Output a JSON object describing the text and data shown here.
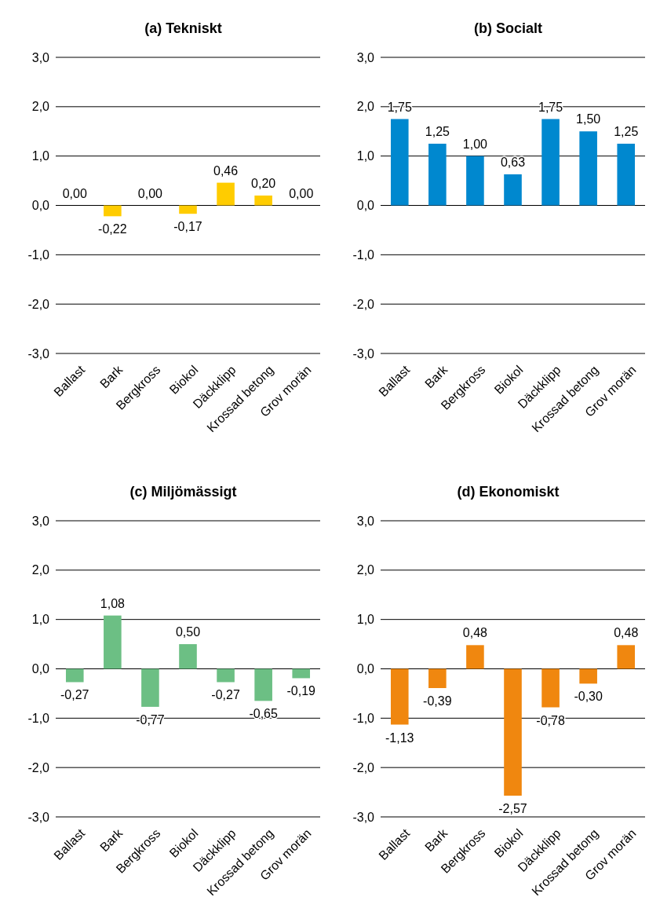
{
  "chart_data": [
    {
      "type": "bar",
      "title": "(a) Tekniskt",
      "categories": [
        "Ballast",
        "Bark",
        "Bergkross",
        "Biokol",
        "Däckklipp",
        "Krossad betong",
        "Grov morän"
      ],
      "values": [
        0,
        -0.22,
        0,
        -0.17,
        0.46,
        0.2,
        0
      ],
      "value_labels": [
        "0,00",
        "-0,22",
        "0,00",
        "-0,17",
        "0,46",
        "0,20",
        "0,00"
      ],
      "color": "#ffcc00",
      "ylim": [
        -3,
        3
      ],
      "yticks": [
        {
          "value": -3,
          "label": "-3,0"
        },
        {
          "value": -2,
          "label": "-2,0"
        },
        {
          "value": -1,
          "label": "-1,0"
        },
        {
          "value": 0,
          "label": "0,0"
        },
        {
          "value": 1,
          "label": "1,0"
        },
        {
          "value": 2,
          "label": "2,0"
        },
        {
          "value": 3,
          "label": "3,0"
        }
      ],
      "grid": "y"
    },
    {
      "type": "bar",
      "title": "(b) Socialt",
      "categories": [
        "Ballast",
        "Bark",
        "Bergkross",
        "Biokol",
        "Däckklipp",
        "Krossad betong",
        "Grov morän"
      ],
      "values": [
        1.75,
        1.25,
        1,
        0.63,
        1.75,
        1.5,
        1.25
      ],
      "value_labels": [
        "1,75",
        "1,25",
        "1,00",
        "0,63",
        "1,75",
        "1,50",
        "1,25"
      ],
      "color": "#0088cf",
      "ylim": [
        -3,
        3
      ],
      "yticks": [
        {
          "value": -3,
          "label": "-3,0"
        },
        {
          "value": -2,
          "label": "-2,0"
        },
        {
          "value": -1,
          "label": "-1,0"
        },
        {
          "value": 0,
          "label": "0,0"
        },
        {
          "value": 1,
          "label": "1,0"
        },
        {
          "value": 2,
          "label": "2,0"
        },
        {
          "value": 3,
          "label": "3,0"
        }
      ],
      "grid": "y"
    },
    {
      "type": "bar",
      "title": "(c) Miljömässigt",
      "categories": [
        "Ballast",
        "Bark",
        "Bergkross",
        "Biokol",
        "Däckklipp",
        "Krossad betong",
        "Grov morän"
      ],
      "values": [
        -0.27,
        1.08,
        -0.77,
        0.5,
        -0.27,
        -0.65,
        -0.19
      ],
      "value_labels": [
        "-0,27",
        "1,08",
        "-0,77",
        "0,50",
        "-0,27",
        "-0,65",
        "-0,19"
      ],
      "color": "#6cbf84",
      "ylim": [
        -3,
        3
      ],
      "yticks": [
        {
          "value": -3,
          "label": "-3,0"
        },
        {
          "value": -2,
          "label": "-2,0"
        },
        {
          "value": -1,
          "label": "-1,0"
        },
        {
          "value": 0,
          "label": "0,0"
        },
        {
          "value": 1,
          "label": "1,0"
        },
        {
          "value": 2,
          "label": "2,0"
        },
        {
          "value": 3,
          "label": "3,0"
        }
      ],
      "grid": "y"
    },
    {
      "type": "bar",
      "title": "(d) Ekonomiskt",
      "categories": [
        "Ballast",
        "Bark",
        "Bergkross",
        "Biokol",
        "Däckklipp",
        "Krossad betong",
        "Grov morän"
      ],
      "values": [
        -1.13,
        -0.39,
        0.48,
        -2.57,
        -0.78,
        -0.3,
        0.48
      ],
      "value_labels": [
        "-1,13",
        "-0,39",
        "0,48",
        "-2,57",
        "-0,78",
        "-0,30",
        "0,48"
      ],
      "color": "#f0870f",
      "ylim": [
        -3,
        3
      ],
      "yticks": [
        {
          "value": -3,
          "label": "-3,0"
        },
        {
          "value": -2,
          "label": "-2,0"
        },
        {
          "value": -1,
          "label": "-1,0"
        },
        {
          "value": 0,
          "label": "0,0"
        },
        {
          "value": 1,
          "label": "1,0"
        },
        {
          "value": 2,
          "label": "2,0"
        },
        {
          "value": 3,
          "label": "3,0"
        }
      ],
      "grid": "y"
    }
  ]
}
